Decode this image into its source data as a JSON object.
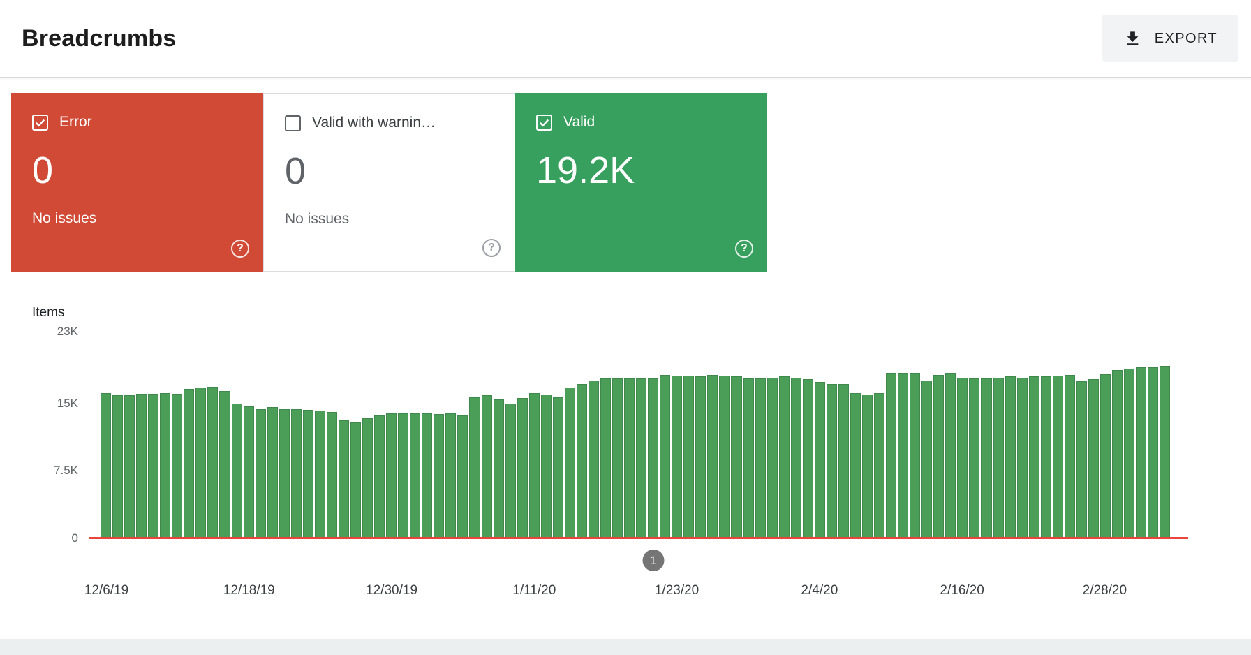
{
  "header": {
    "title": "Breadcrumbs",
    "export_label": "EXPORT",
    "export_icon": "download-icon"
  },
  "cards": {
    "error": {
      "label": "Error",
      "value": "0",
      "subtext": "No issues",
      "checked": true,
      "help_glyph": "?"
    },
    "warning": {
      "label": "Valid with warnin…",
      "value": "0",
      "subtext": "No issues",
      "checked": false,
      "help_glyph": "?"
    },
    "valid": {
      "label": "Valid",
      "value": "19.2K",
      "checked": true,
      "help_glyph": "?"
    }
  },
  "colors": {
    "error_card": "#d04a36",
    "valid_card": "#38a05e",
    "bar": "#4b9e58",
    "error_line": "#e8453c",
    "marker_bg": "#757575"
  },
  "chart_data": {
    "type": "bar",
    "title": "Items",
    "ylabel": "Items",
    "ylim": [
      0,
      23000
    ],
    "grid": true,
    "y_ticks": [
      {
        "label": "23K",
        "value": 23000
      },
      {
        "label": "15K",
        "value": 15000
      },
      {
        "label": "7.5K",
        "value": 7500
      },
      {
        "label": "0",
        "value": 0
      }
    ],
    "series": [
      {
        "name": "Valid",
        "color": "#4b9e58",
        "values": [
          16200,
          15900,
          15900,
          16100,
          16100,
          16200,
          16100,
          16600,
          16800,
          16900,
          16400,
          15000,
          14700,
          14400,
          14600,
          14400,
          14400,
          14300,
          14200,
          14100,
          13100,
          12900,
          13400,
          13700,
          13900,
          13900,
          13900,
          13900,
          13800,
          13900,
          13700,
          15700,
          15900,
          15500,
          15000,
          15600,
          16200,
          16000,
          15700,
          16800,
          17200,
          17600,
          17800,
          17800,
          17800,
          17800,
          17800,
          18200,
          18100,
          18100,
          18000,
          18200,
          18100,
          18000,
          17800,
          17800,
          17900,
          18000,
          17900,
          17700,
          17400,
          17200,
          17200,
          16200,
          16000,
          16200,
          18400,
          18400,
          18400,
          17600,
          18200,
          18400,
          17900,
          17800,
          17800,
          17900,
          18000,
          17900,
          18000,
          18000,
          18100,
          18200,
          17500,
          17700,
          18300,
          18700,
          18900,
          19000,
          19000,
          19200
        ]
      },
      {
        "name": "Error",
        "color": "#e8453c",
        "constant_value": 0
      }
    ],
    "x_tick_labels": [
      "12/6/19",
      "12/18/19",
      "12/30/19",
      "1/11/20",
      "1/23/20",
      "2/4/20",
      "2/16/20",
      "2/28/20"
    ],
    "x_tick_indices": [
      0,
      12,
      24,
      36,
      48,
      60,
      72,
      84
    ],
    "marker": {
      "label": "1",
      "index": 46
    }
  }
}
